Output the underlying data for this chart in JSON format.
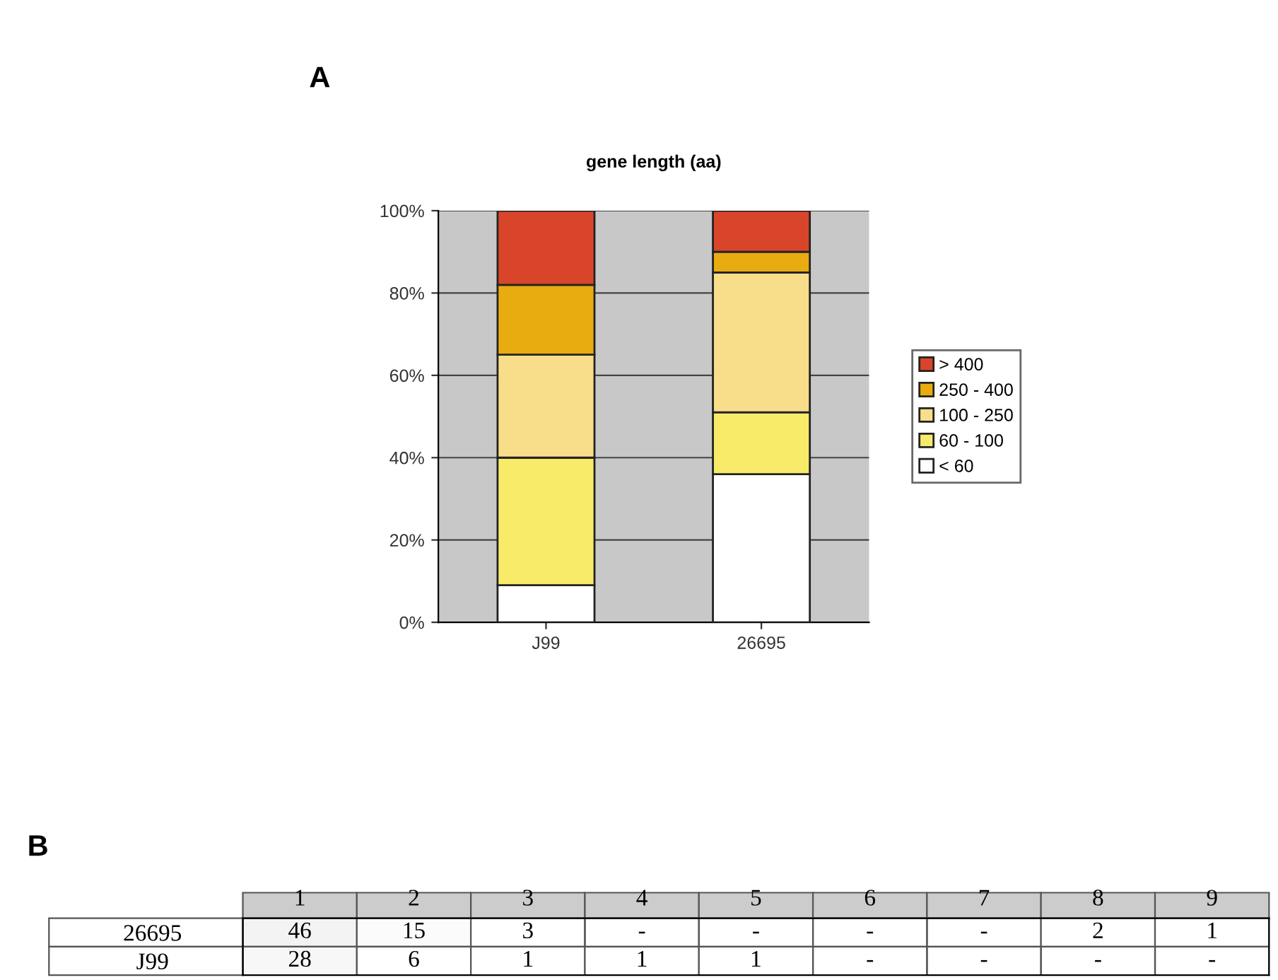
{
  "chart_data": [
    {
      "type": "bar",
      "title": "gene length (aa)",
      "annotations": [
        "A"
      ],
      "categories": [
        "J99",
        "26695"
      ],
      "stacked": true,
      "legend": "right",
      "grid": "y",
      "ylim": [
        0,
        100
      ],
      "yticks": [
        {
          "value": 0,
          "label": "0%"
        },
        {
          "value": 20,
          "label": "20%"
        },
        {
          "value": 40,
          "label": "40%"
        },
        {
          "value": 60,
          "label": "60%"
        },
        {
          "value": 80,
          "label": "80%"
        },
        {
          "value": 100,
          "label": "100%"
        }
      ],
      "series": [
        {
          "name": "< 60",
          "color": "#ffffff",
          "values": [
            9,
            36
          ]
        },
        {
          "name": "60 - 100",
          "color": "#f9eb6a",
          "values": [
            31,
            15
          ]
        },
        {
          "name": "100 - 250",
          "color": "#f8dd8a",
          "values": [
            25,
            34
          ]
        },
        {
          "name": "250 - 400",
          "color": "#e8ac10",
          "values": [
            17,
            5
          ]
        },
        {
          "name": "> 400",
          "color": "#d9452a",
          "values": [
            18,
            10
          ]
        }
      ]
    },
    {
      "type": "heatmap",
      "annotations": [
        "B"
      ],
      "categories": [
        "1",
        "2",
        "3",
        "4",
        "5",
        "6",
        "7",
        "8",
        "9"
      ],
      "y_categories": [
        "26695",
        "J99"
      ],
      "cells": [
        [
          46,
          15,
          3,
          null,
          null,
          null,
          null,
          2,
          1
        ],
        [
          28,
          6,
          1,
          1,
          1,
          null,
          null,
          null,
          null
        ]
      ],
      "cell_labels": [
        [
          "46",
          "15",
          "3",
          "-",
          "-",
          "-",
          "-",
          "2",
          "1"
        ],
        [
          "28",
          "6",
          "1",
          "1",
          "1",
          "-",
          "-",
          "-",
          "-"
        ]
      ]
    }
  ]
}
